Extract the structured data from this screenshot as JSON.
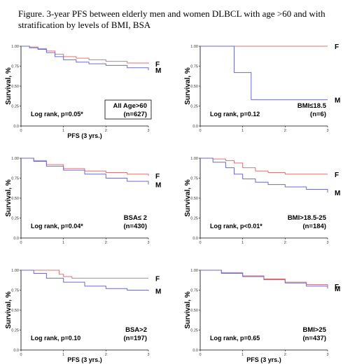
{
  "figure": {
    "title": "Figure.  3-year PFS between elderly men and women DLBCL with age >60 and with stratification by levels of BMI, BSA"
  },
  "colors": {
    "F": "#e57373",
    "M": "#6a6ad8",
    "axis": "#000000"
  },
  "chart_data": [
    {
      "type": "line",
      "ylabel": "Survival, %",
      "xlabel": "PFS (3 yrs.)",
      "xlim": [
        0,
        3
      ],
      "ylim": [
        0,
        1.0
      ],
      "xticks": [
        "0",
        "1",
        "2",
        "3"
      ],
      "yticks": [
        "0.0",
        "0.25",
        "0.50",
        "0.75",
        "1.00"
      ],
      "series": [
        {
          "name": "F",
          "x": [
            0,
            0.2,
            0.4,
            0.6,
            0.8,
            1.0,
            1.3,
            1.6,
            2.0,
            2.5,
            3.0
          ],
          "y": [
            1.0,
            0.99,
            0.97,
            0.94,
            0.9,
            0.87,
            0.85,
            0.83,
            0.81,
            0.79,
            0.78
          ]
        },
        {
          "name": "M",
          "x": [
            0,
            0.2,
            0.4,
            0.6,
            0.8,
            1.0,
            1.3,
            1.6,
            2.0,
            2.5,
            3.0
          ],
          "y": [
            1.0,
            0.98,
            0.96,
            0.92,
            0.87,
            0.83,
            0.8,
            0.78,
            0.76,
            0.73,
            0.7
          ]
        }
      ],
      "annotation": "Log rank, p=0.05*",
      "group": [
        "All Age>60",
        "(n=627)"
      ],
      "group_boxed": true
    },
    {
      "type": "line",
      "ylabel": "Survival, %",
      "xlabel": "",
      "xlim": [
        0,
        3
      ],
      "ylim": [
        0,
        1.0
      ],
      "xticks": [
        "0",
        "1",
        "2",
        "3"
      ],
      "yticks": [
        "0.0",
        "0.25",
        "0.50",
        "0.75",
        "1.00"
      ],
      "series": [
        {
          "name": "F",
          "x": [
            0,
            3.0
          ],
          "y": [
            1.0,
            1.0
          ]
        },
        {
          "name": "M",
          "x": [
            0,
            0.8,
            0.8,
            1.2,
            1.2,
            3.0
          ],
          "y": [
            1.0,
            1.0,
            0.67,
            0.67,
            0.33,
            0.33
          ]
        }
      ],
      "annotation": "Log rank, p=0.12",
      "group": [
        "BMI≤18.5",
        "(n=6)"
      ],
      "group_boxed": false
    },
    {
      "type": "line",
      "ylabel": "Survival, %",
      "xlabel": "",
      "xlim": [
        0,
        3
      ],
      "ylim": [
        0,
        1.0
      ],
      "xticks": [
        "0",
        "1",
        "2",
        "3"
      ],
      "yticks": [
        "0.0",
        "0.25",
        "0.50",
        "0.75",
        "1.00"
      ],
      "series": [
        {
          "name": "F",
          "x": [
            0,
            0.3,
            0.6,
            1.0,
            1.5,
            2.0,
            2.5,
            3.0
          ],
          "y": [
            1.0,
            0.97,
            0.92,
            0.87,
            0.84,
            0.82,
            0.8,
            0.78
          ]
        },
        {
          "name": "M",
          "x": [
            0,
            0.3,
            0.6,
            1.0,
            1.5,
            2.0,
            2.5,
            3.0
          ],
          "y": [
            1.0,
            0.96,
            0.9,
            0.85,
            0.8,
            0.75,
            0.71,
            0.67
          ]
        }
      ],
      "annotation": "Log rank, p=0.04*",
      "group": [
        "BSA≤ 2",
        "(n=430)"
      ],
      "group_boxed": false
    },
    {
      "type": "line",
      "ylabel": "Survival, %",
      "xlabel": "",
      "xlim": [
        0,
        3
      ],
      "ylim": [
        0,
        1.0
      ],
      "xticks": [
        "0",
        "1",
        "2",
        "3"
      ],
      "yticks": [
        "0.0",
        "0.25",
        "0.50",
        "0.75",
        "1.00"
      ],
      "series": [
        {
          "name": "F",
          "x": [
            0,
            0.3,
            0.6,
            0.8,
            1.0,
            1.3,
            1.6,
            2.0,
            2.5,
            3.0
          ],
          "y": [
            1.0,
            0.99,
            0.97,
            0.94,
            0.88,
            0.84,
            0.82,
            0.8,
            0.8,
            0.8
          ]
        },
        {
          "name": "M",
          "x": [
            0,
            0.3,
            0.6,
            0.8,
            1.0,
            1.3,
            1.6,
            2.0,
            2.5,
            3.0
          ],
          "y": [
            1.0,
            0.95,
            0.88,
            0.8,
            0.74,
            0.7,
            0.67,
            0.64,
            0.61,
            0.57
          ]
        }
      ],
      "annotation": "Log rank, p<0.01*",
      "group": [
        "BMI>18.5-25",
        "(n=184)"
      ],
      "group_boxed": false
    },
    {
      "type": "line",
      "ylabel": "Survival, %",
      "xlabel": "PFS (3 yrs.)",
      "xlim": [
        0,
        3
      ],
      "ylim": [
        0,
        1.0
      ],
      "xticks": [
        "0",
        "1",
        "2",
        "3"
      ],
      "yticks": [
        "0.0",
        "0.25",
        "0.50",
        "0.75",
        "1.00"
      ],
      "series": [
        {
          "name": "F",
          "x": [
            0,
            0.3,
            0.6,
            0.9,
            1.0,
            1.2,
            3.0
          ],
          "y": [
            1.0,
            1.0,
            1.0,
            0.95,
            0.92,
            0.9,
            0.9
          ]
        },
        {
          "name": "M",
          "x": [
            0,
            0.3,
            0.6,
            1.0,
            1.5,
            2.0,
            2.5,
            3.0
          ],
          "y": [
            1.0,
            0.96,
            0.9,
            0.85,
            0.8,
            0.77,
            0.75,
            0.74
          ]
        }
      ],
      "annotation": "Log rank, p=0.10",
      "group": [
        "BSA>2",
        "(n=197)"
      ],
      "group_boxed": false
    },
    {
      "type": "line",
      "ylabel": "Survival, %",
      "xlabel": "PFS (3 yrs.)",
      "xlim": [
        0,
        3
      ],
      "ylim": [
        0,
        1.0
      ],
      "xticks": [
        "0",
        "1",
        "2",
        "3"
      ],
      "yticks": [
        "0.0",
        "0.25",
        "0.50",
        "0.75",
        "1.00"
      ],
      "series": [
        {
          "name": "F",
          "x": [
            0,
            0.5,
            1.0,
            1.5,
            2.0,
            2.5,
            3.0
          ],
          "y": [
            1.0,
            0.97,
            0.93,
            0.89,
            0.85,
            0.82,
            0.8
          ]
        },
        {
          "name": "M",
          "x": [
            0,
            0.5,
            1.0,
            1.5,
            2.0,
            2.5,
            3.0
          ],
          "y": [
            1.0,
            0.96,
            0.92,
            0.88,
            0.84,
            0.8,
            0.77
          ]
        }
      ],
      "annotation": "Log rank, p=0.65",
      "group": [
        "BMI>25",
        "(n=437)"
      ],
      "group_boxed": false
    }
  ]
}
